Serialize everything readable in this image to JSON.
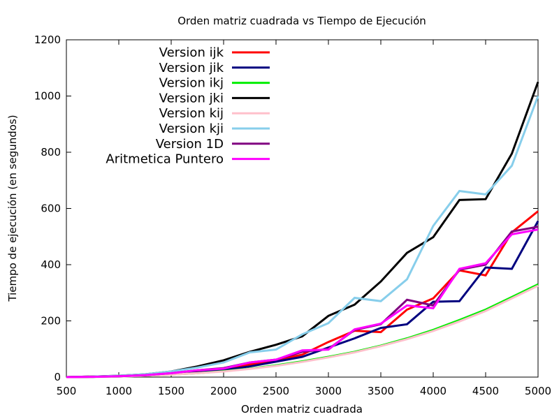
{
  "chart_data": {
    "type": "line",
    "title": "Orden matriz cuadrada vs Tiempo de Ejecución",
    "xlabel": "Orden matriz cuadrada",
    "ylabel": "Tiempo de ejecución (en segundos)",
    "xlim": [
      500,
      5000
    ],
    "ylim": [
      0,
      1200
    ],
    "xticks": [
      500,
      1000,
      1500,
      2000,
      2500,
      3000,
      3500,
      4000,
      4500,
      5000
    ],
    "yticks": [
      0,
      200,
      400,
      600,
      800,
      1000,
      1200
    ],
    "grid": false,
    "legend_position": "top-left",
    "x": [
      500,
      750,
      1000,
      1250,
      1500,
      1750,
      2000,
      2250,
      2500,
      2750,
      3000,
      3250,
      3500,
      3750,
      4000,
      4250,
      4500,
      4750,
      5000
    ],
    "series": [
      {
        "name": "Version ijk",
        "color": "#ff0000",
        "values": [
          0,
          2,
          4,
          7,
          12,
          20,
          30,
          45,
          60,
          80,
          125,
          165,
          160,
          240,
          280,
          380,
          362,
          515,
          590
        ]
      },
      {
        "name": "Version jik",
        "color": "#00007f",
        "values": [
          0,
          1,
          3,
          6,
          10,
          16,
          25,
          38,
          55,
          72,
          105,
          138,
          175,
          188,
          268,
          270,
          390,
          385,
          555
        ]
      },
      {
        "name": "Version ikj",
        "color": "#00ee00",
        "values": [
          0,
          1,
          2,
          5,
          9,
          14,
          21,
          30,
          42,
          56,
          72,
          90,
          112,
          138,
          168,
          203,
          240,
          285,
          330
        ]
      },
      {
        "name": "Version jki",
        "color": "#000000",
        "values": [
          0,
          2,
          5,
          10,
          20,
          38,
          60,
          90,
          115,
          145,
          218,
          258,
          340,
          442,
          498,
          630,
          633,
          795,
          1050
        ]
      },
      {
        "name": "Version kij",
        "color": "#ffc0cb",
        "values": [
          0,
          1,
          2,
          5,
          9,
          14,
          20,
          29,
          40,
          54,
          70,
          88,
          110,
          135,
          164,
          198,
          235,
          280,
          325
        ]
      },
      {
        "name": "Version kji",
        "color": "#87ceeb",
        "values": [
          0,
          2,
          5,
          10,
          20,
          34,
          52,
          88,
          98,
          152,
          192,
          282,
          270,
          348,
          538,
          662,
          650,
          752,
          1000
        ]
      },
      {
        "name": "Version 1D",
        "color": "#800080",
        "values": [
          0,
          1,
          3,
          7,
          14,
          24,
          32,
          52,
          62,
          90,
          100,
          168,
          188,
          275,
          255,
          382,
          400,
          518,
          535
        ]
      },
      {
        "name": "Aritmetica Puntero",
        "color": "#ff00ff",
        "values": [
          0,
          1,
          3,
          7,
          14,
          24,
          30,
          52,
          62,
          95,
          98,
          170,
          190,
          255,
          245,
          385,
          405,
          508,
          525
        ]
      }
    ]
  }
}
